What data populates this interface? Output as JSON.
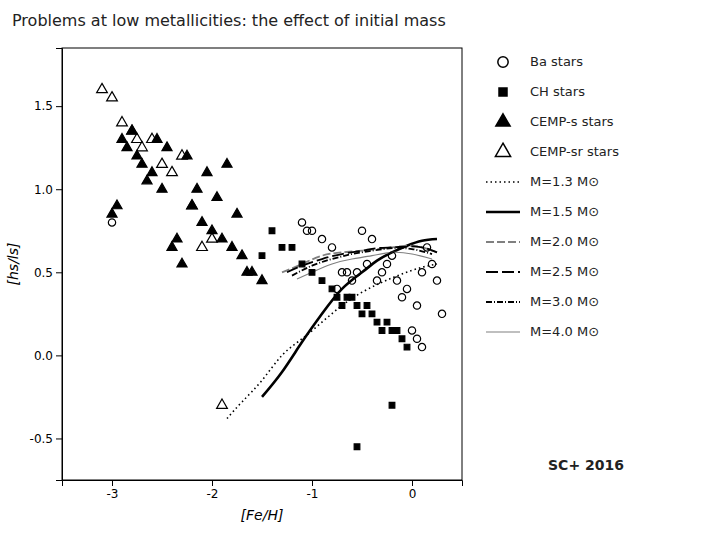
{
  "chart_data": {
    "type": "scatter",
    "title": "Problems at low metallicities: the effect of initial mass",
    "xlabel": "[Fe/H]",
    "ylabel": "[hs/ls]",
    "xlim": [
      -3.5,
      0.5
    ],
    "ylim": [
      -0.75,
      1.85
    ],
    "xticks": [
      -3,
      -2,
      -1,
      0
    ],
    "yticks": [
      -0.5,
      {
        "value": 0,
        "label": "0.0"
      },
      0.5,
      {
        "value": 1,
        "label": "1.0"
      },
      1.5
    ],
    "legend": "right",
    "annotations": [
      "SC+ 2016"
    ],
    "series": [
      {
        "name": "Ba stars",
        "type": "scatter",
        "marker": "circle-open",
        "color": "black",
        "x": [
          -0.05,
          0.05,
          0.1,
          0.15,
          0.2,
          0.25,
          0.3,
          -0.1,
          -0.15,
          -0.2,
          -0.25,
          -0.3,
          -0.35,
          -0.4,
          -0.45,
          -0.5,
          -0.55,
          -0.6,
          -0.65,
          -0.7,
          -0.75,
          -0.8,
          -0.9,
          -1.0,
          -1.05,
          -1.1,
          0.0,
          0.05,
          0.1,
          -3.0
        ],
        "values": [
          0.4,
          0.3,
          0.5,
          0.65,
          0.55,
          0.45,
          0.25,
          0.35,
          0.45,
          0.6,
          0.55,
          0.5,
          0.45,
          0.7,
          0.55,
          0.75,
          0.5,
          0.45,
          0.5,
          0.5,
          0.4,
          0.65,
          0.7,
          0.75,
          0.75,
          0.8,
          0.15,
          0.1,
          0.05,
          0.8
        ]
      },
      {
        "name": "CH stars",
        "type": "scatter",
        "marker": "square",
        "color": "black",
        "x": [
          -0.05,
          -0.1,
          -0.15,
          -0.2,
          -0.25,
          -0.3,
          -0.35,
          -0.4,
          -0.45,
          -0.5,
          -0.55,
          -0.6,
          -0.65,
          -0.7,
          -0.75,
          -0.8,
          -0.9,
          -1.0,
          -1.1,
          -1.2,
          -1.3,
          -1.4,
          -0.2,
          -0.55,
          -1.5
        ],
        "values": [
          0.05,
          0.1,
          0.15,
          0.15,
          0.2,
          0.15,
          0.2,
          0.25,
          0.3,
          0.25,
          0.3,
          0.35,
          0.35,
          0.3,
          0.35,
          0.4,
          0.45,
          0.5,
          0.55,
          0.65,
          0.65,
          0.75,
          -0.3,
          -0.55,
          0.6
        ]
      },
      {
        "name": "CEMP-s stars",
        "type": "scatter",
        "marker": "triangle",
        "color": "black",
        "x": [
          -2.6,
          -2.7,
          -2.75,
          -2.8,
          -2.85,
          -2.9,
          -2.95,
          -3.0,
          -2.65,
          -2.55,
          -2.5,
          -2.45,
          -2.4,
          -2.35,
          -2.3,
          -2.25,
          -2.2,
          -2.15,
          -2.1,
          -2.05,
          -2.0,
          -1.95,
          -1.9,
          -1.85,
          -1.8,
          -1.75,
          -1.7,
          -1.65,
          -1.6,
          -1.5
        ],
        "values": [
          1.1,
          1.15,
          1.2,
          1.35,
          1.25,
          1.3,
          0.9,
          0.85,
          1.05,
          1.3,
          1.0,
          1.25,
          0.65,
          0.7,
          0.55,
          1.2,
          0.9,
          1.0,
          0.8,
          1.1,
          0.75,
          0.95,
          0.7,
          1.15,
          0.65,
          0.85,
          0.6,
          0.5,
          0.5,
          0.45
        ]
      },
      {
        "name": "CEMP-sr stars",
        "type": "scatter",
        "marker": "triangle-open",
        "color": "black",
        "x": [
          -3.1,
          -3.0,
          -2.9,
          -2.8,
          -2.75,
          -2.7,
          -2.6,
          -2.5,
          -2.4,
          -2.3,
          -2.2,
          -2.1,
          -2.0,
          -1.9
        ],
        "values": [
          1.6,
          1.55,
          1.4,
          1.35,
          1.3,
          1.25,
          1.3,
          1.15,
          1.1,
          1.2,
          0.9,
          0.65,
          0.7,
          -0.3
        ]
      },
      {
        "name": "M=1.3 M⊙",
        "type": "line",
        "line_style": "dotted",
        "color": "black",
        "x": [
          -1.85,
          -1.7,
          -1.5,
          -1.3,
          -1.1,
          -0.9,
          -0.7,
          -0.5,
          -0.3,
          -0.1,
          0.1,
          0.25
        ],
        "values": [
          -0.38,
          -0.28,
          -0.15,
          0.0,
          0.1,
          0.2,
          0.3,
          0.38,
          0.44,
          0.49,
          0.53,
          0.55
        ]
      },
      {
        "name": "M=1.5 M⊙",
        "type": "line",
        "line_style": "solid-thick",
        "color": "black",
        "x": [
          -1.5,
          -1.3,
          -1.1,
          -0.9,
          -0.7,
          -0.5,
          -0.35,
          -0.2,
          -0.05,
          0.1,
          0.25
        ],
        "values": [
          -0.25,
          -0.1,
          0.08,
          0.25,
          0.4,
          0.5,
          0.57,
          0.62,
          0.66,
          0.69,
          0.7
        ]
      },
      {
        "name": "M=2.0 M⊙",
        "type": "line",
        "line_style": "dashed",
        "color": "gray",
        "x": [
          -1.3,
          -1.1,
          -0.9,
          -0.7,
          -0.5,
          -0.35,
          -0.2,
          -0.05,
          0.1,
          0.25
        ],
        "values": [
          0.5,
          0.55,
          0.6,
          0.62,
          0.63,
          0.64,
          0.65,
          0.66,
          0.65,
          0.62
        ]
      },
      {
        "name": "M=2.5 M⊙",
        "type": "line",
        "line_style": "long-dashed",
        "color": "black",
        "x": [
          -1.25,
          -1.1,
          -0.9,
          -0.7,
          -0.5,
          -0.35,
          -0.2,
          -0.05,
          0.1,
          0.25
        ],
        "values": [
          0.5,
          0.54,
          0.58,
          0.61,
          0.63,
          0.645,
          0.65,
          0.655,
          0.65,
          0.62
        ]
      },
      {
        "name": "M=3.0 M⊙",
        "type": "line",
        "line_style": "dash-dot",
        "color": "black",
        "x": [
          -1.2,
          -1.0,
          -0.8,
          -0.6,
          -0.4,
          -0.2,
          0.0,
          0.2
        ],
        "values": [
          0.48,
          0.54,
          0.58,
          0.61,
          0.63,
          0.645,
          0.64,
          0.61
        ]
      },
      {
        "name": "M=4.0 M⊙",
        "type": "line",
        "line_style": "solid-thin",
        "color": "gray",
        "x": [
          -1.15,
          -1.0,
          -0.8,
          -0.6,
          -0.4,
          -0.2,
          0.0,
          0.2
        ],
        "values": [
          0.46,
          0.5,
          0.55,
          0.58,
          0.6,
          0.62,
          0.61,
          0.58
        ]
      }
    ]
  }
}
